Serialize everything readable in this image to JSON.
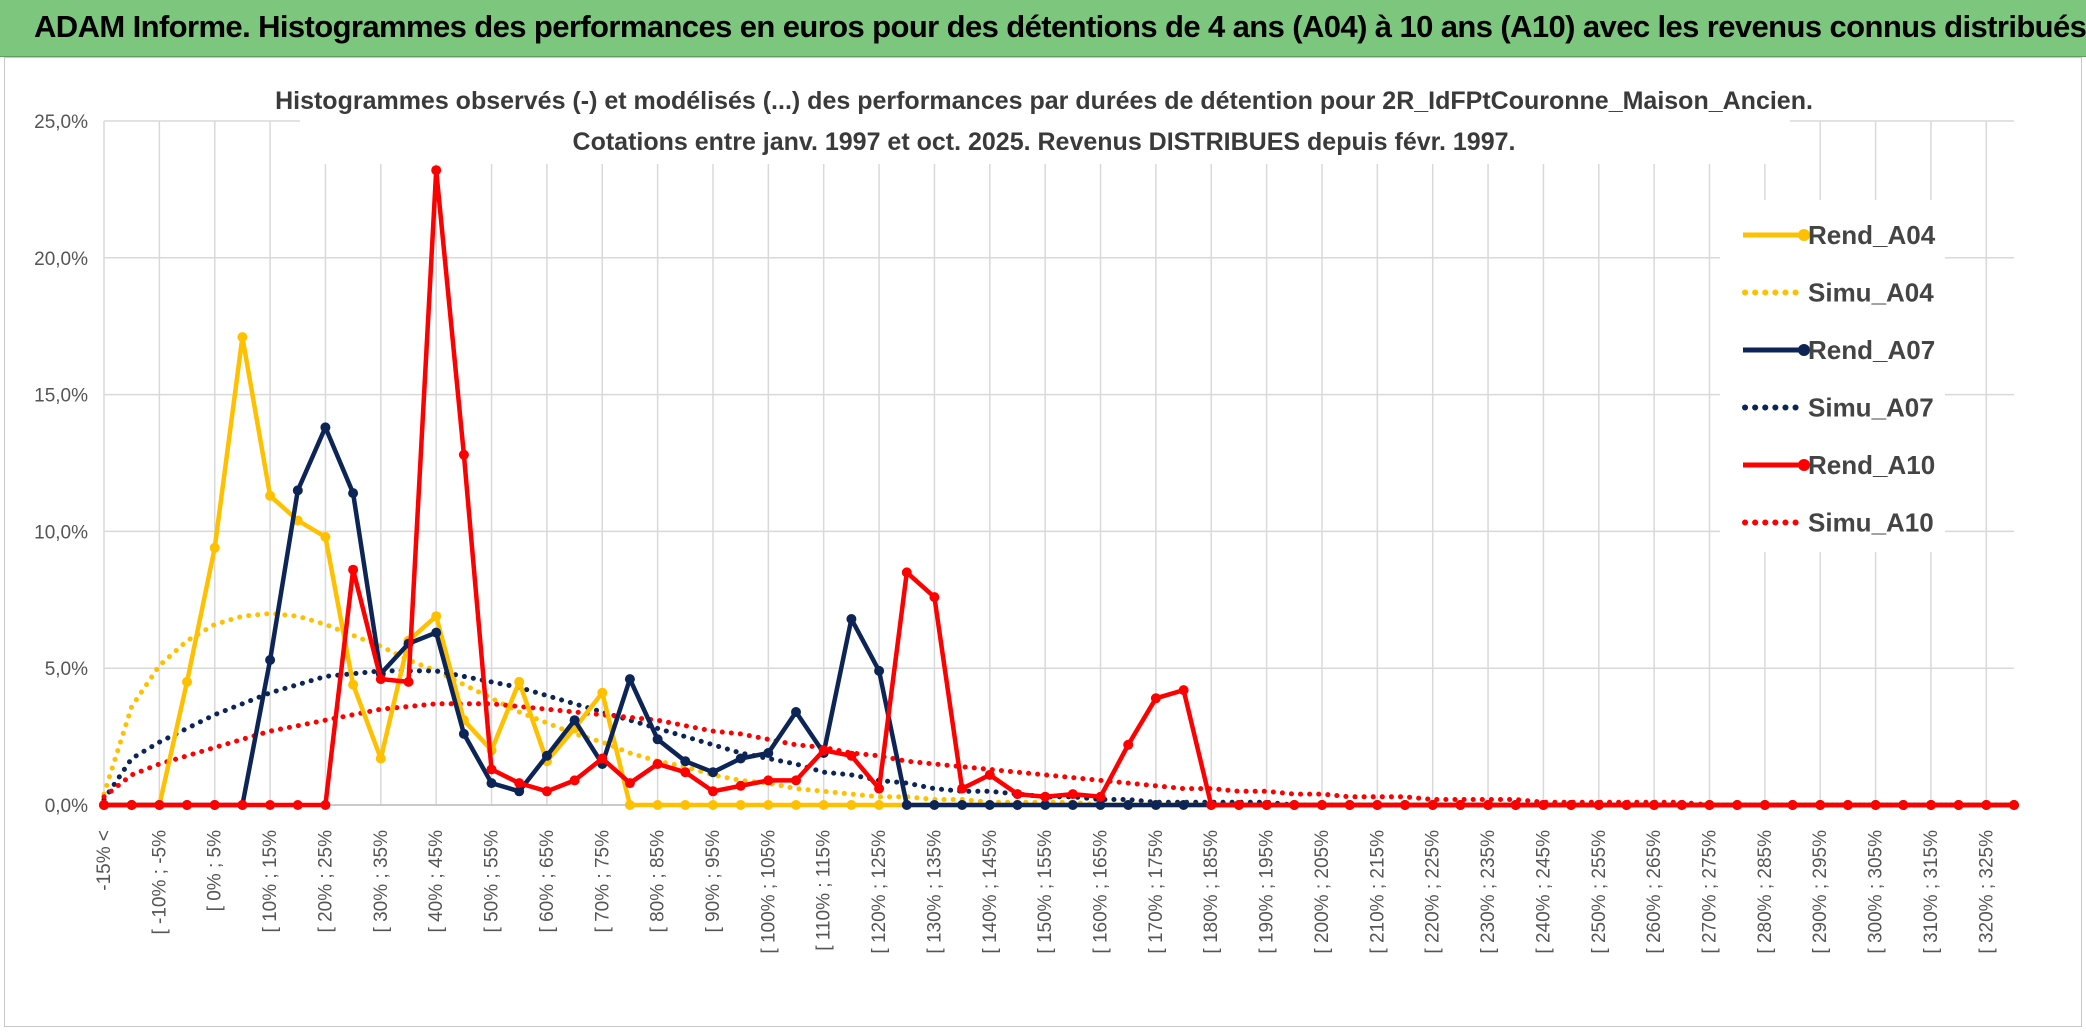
{
  "header": {
    "title": "ADAM Informe. Histogrammes des performances en euros pour des détentions de 4 ans (A04) à 10 ans (A10) avec les revenus connus distribués"
  },
  "colors": {
    "header_bg": "#7dc67e",
    "a04": "#ffc000",
    "a07": "#0c2556",
    "a10": "#ff0000",
    "grid": "#d9d9d9"
  },
  "chart_data": {
    "type": "line",
    "title_lines": [
      "Histogrammes observés (-) et modélisés (...) des performances par durées de détention pour 2R_IdFPtCouronne_Maison_Ancien.",
      "Cotations entre janv. 1997 et oct. 2025. Revenus DISTRIBUES depuis févr. 1997."
    ],
    "ylim": [
      0,
      25
    ],
    "y_ticks": [
      "0,0%",
      "5,0%",
      "10,0%",
      "15,0%",
      "20,0%",
      "25,0%"
    ],
    "y_tick_values": [
      0,
      5,
      10,
      15,
      20,
      25
    ],
    "x_labels": [
      "-15% <",
      "[ -10% ; -5%",
      "[ 0% ; 5%",
      "[ 10% ; 15%",
      "[ 20% ; 25%",
      "[ 30% ; 35%",
      "[ 40% ; 45%",
      "[ 50% ; 55%",
      "[ 60% ; 65%",
      "[ 70% ; 75%",
      "[ 80% ; 85%",
      "[ 90% ; 95%",
      "[ 100% ; 105%",
      "[ 110% ; 115%",
      "[ 120% ; 125%",
      "[ 130% ; 135%",
      "[ 140% ; 145%",
      "[ 150% ; 155%",
      "[ 160% ; 165%",
      "[ 170% ; 175%",
      "[ 180% ; 185%",
      "[ 190% ; 195%",
      "[ 200% ; 205%",
      "[ 210% ; 215%",
      "[ 220% ; 225%",
      "[ 230% ; 235%",
      "[ 240% ; 245%",
      "[ 250% ; 255%",
      "[ 260% ; 265%",
      "[ 270% ; 275%",
      "[ 280% ; 285%",
      "[ 290% ; 295%",
      "[ 300% ; 305%",
      "[ 310% ; 315%",
      "[ 320% ; 325%"
    ],
    "n_bins": 70,
    "legend": [
      "Rend_A04",
      "Simu_A04",
      "Rend_A07",
      "Simu_A07",
      "Rend_A10",
      "Simu_A10"
    ],
    "series": [
      {
        "name": "Rend_A04",
        "style": "solid",
        "color": "#ffc000",
        "values": [
          0,
          0,
          0,
          4.5,
          9.4,
          17.1,
          11.3,
          10.4,
          9.8,
          4.4,
          1.7,
          6.0,
          6.9,
          3.1,
          2.0,
          4.5,
          1.6,
          2.8,
          4.1,
          0,
          0,
          0,
          0,
          0,
          0,
          0,
          0,
          0,
          0,
          0,
          0,
          0,
          0,
          0,
          0,
          0,
          0,
          0,
          0,
          0,
          0,
          0,
          0,
          0,
          0,
          0,
          0,
          0,
          0,
          0,
          0,
          0,
          0,
          0,
          0,
          0,
          0,
          0,
          0,
          0,
          0,
          0,
          0,
          0,
          0,
          0,
          0,
          0,
          0,
          0
        ]
      },
      {
        "name": "Simu_A04",
        "style": "dotted",
        "color": "#ffc000",
        "values": [
          0.4,
          3.6,
          5.1,
          6.0,
          6.6,
          6.9,
          7.0,
          6.9,
          6.6,
          6.2,
          5.8,
          5.3,
          4.9,
          4.4,
          3.9,
          3.4,
          3.0,
          2.6,
          2.3,
          1.9,
          1.6,
          1.4,
          1.1,
          0.9,
          0.8,
          0.6,
          0.5,
          0.4,
          0.3,
          0.3,
          0.2,
          0.2,
          0.1,
          0.1,
          0.1,
          0.1,
          0,
          0,
          0,
          0,
          0,
          0,
          0,
          0,
          0,
          0,
          0,
          0,
          0,
          0,
          0,
          0,
          0,
          0,
          0,
          0,
          0,
          0,
          0,
          0,
          0,
          0,
          0,
          0,
          0,
          0,
          0,
          0,
          0,
          0
        ]
      },
      {
        "name": "Rend_A07",
        "style": "solid",
        "color": "#0c2556",
        "values": [
          0,
          0,
          0,
          0,
          0,
          0,
          5.3,
          11.5,
          13.8,
          11.4,
          4.8,
          5.9,
          6.3,
          2.6,
          0.8,
          0.5,
          1.8,
          3.1,
          1.5,
          4.6,
          2.4,
          1.6,
          1.2,
          1.7,
          1.9,
          3.4,
          1.9,
          6.8,
          4.9,
          0,
          0,
          0,
          0,
          0,
          0,
          0,
          0,
          0,
          0,
          0,
          0,
          0,
          0,
          0,
          0,
          0,
          0,
          0,
          0,
          0,
          0,
          0,
          0,
          0,
          0,
          0,
          0,
          0,
          0,
          0,
          0,
          0,
          0,
          0,
          0,
          0,
          0,
          0,
          0,
          0
        ]
      },
      {
        "name": "Simu_A07",
        "style": "dotted",
        "color": "#0c2556",
        "values": [
          0.2,
          1.7,
          2.3,
          2.8,
          3.3,
          3.7,
          4.1,
          4.4,
          4.7,
          4.8,
          4.9,
          4.9,
          4.9,
          4.7,
          4.5,
          4.3,
          4.0,
          3.7,
          3.4,
          3.1,
          2.8,
          2.5,
          2.2,
          1.9,
          1.7,
          1.5,
          1.2,
          1.1,
          0.9,
          0.8,
          0.6,
          0.5,
          0.5,
          0.4,
          0.3,
          0.3,
          0.2,
          0.2,
          0.1,
          0.1,
          0.1,
          0.1,
          0.1,
          0,
          0,
          0,
          0,
          0,
          0,
          0,
          0,
          0,
          0,
          0,
          0,
          0,
          0,
          0,
          0,
          0,
          0,
          0,
          0,
          0,
          0,
          0,
          0,
          0,
          0,
          0
        ]
      },
      {
        "name": "Rend_A10",
        "style": "solid",
        "color": "#ff0000",
        "values": [
          0,
          0,
          0,
          0,
          0,
          0,
          0,
          0,
          0,
          8.6,
          4.6,
          4.5,
          23.2,
          12.8,
          1.3,
          0.8,
          0.5,
          0.9,
          1.7,
          0.8,
          1.5,
          1.2,
          0.5,
          0.7,
          0.9,
          0.9,
          2.0,
          1.8,
          0.6,
          8.5,
          7.6,
          0.6,
          1.1,
          0.4,
          0.3,
          0.4,
          0.3,
          2.2,
          3.9,
          4.2,
          0,
          0,
          0,
          0,
          0,
          0,
          0,
          0,
          0,
          0,
          0,
          0,
          0,
          0,
          0,
          0,
          0,
          0,
          0,
          0,
          0,
          0,
          0,
          0,
          0,
          0,
          0,
          0,
          0,
          0
        ]
      },
      {
        "name": "Simu_A10",
        "style": "dotted",
        "color": "#ff0000",
        "values": [
          0.3,
          1.1,
          1.5,
          1.8,
          2.1,
          2.4,
          2.7,
          2.9,
          3.1,
          3.3,
          3.5,
          3.6,
          3.7,
          3.7,
          3.7,
          3.6,
          3.5,
          3.4,
          3.3,
          3.2,
          3.1,
          2.9,
          2.7,
          2.6,
          2.4,
          2.2,
          2.1,
          1.9,
          1.8,
          1.6,
          1.5,
          1.4,
          1.3,
          1.2,
          1.1,
          1.0,
          0.9,
          0.8,
          0.7,
          0.6,
          0.6,
          0.5,
          0.5,
          0.4,
          0.4,
          0.3,
          0.3,
          0.3,
          0.2,
          0.2,
          0.2,
          0.2,
          0.1,
          0.1,
          0.1,
          0.1,
          0.1,
          0.1,
          0,
          0,
          0,
          0,
          0,
          0,
          0,
          0,
          0,
          0,
          0,
          0
        ]
      }
    ]
  }
}
